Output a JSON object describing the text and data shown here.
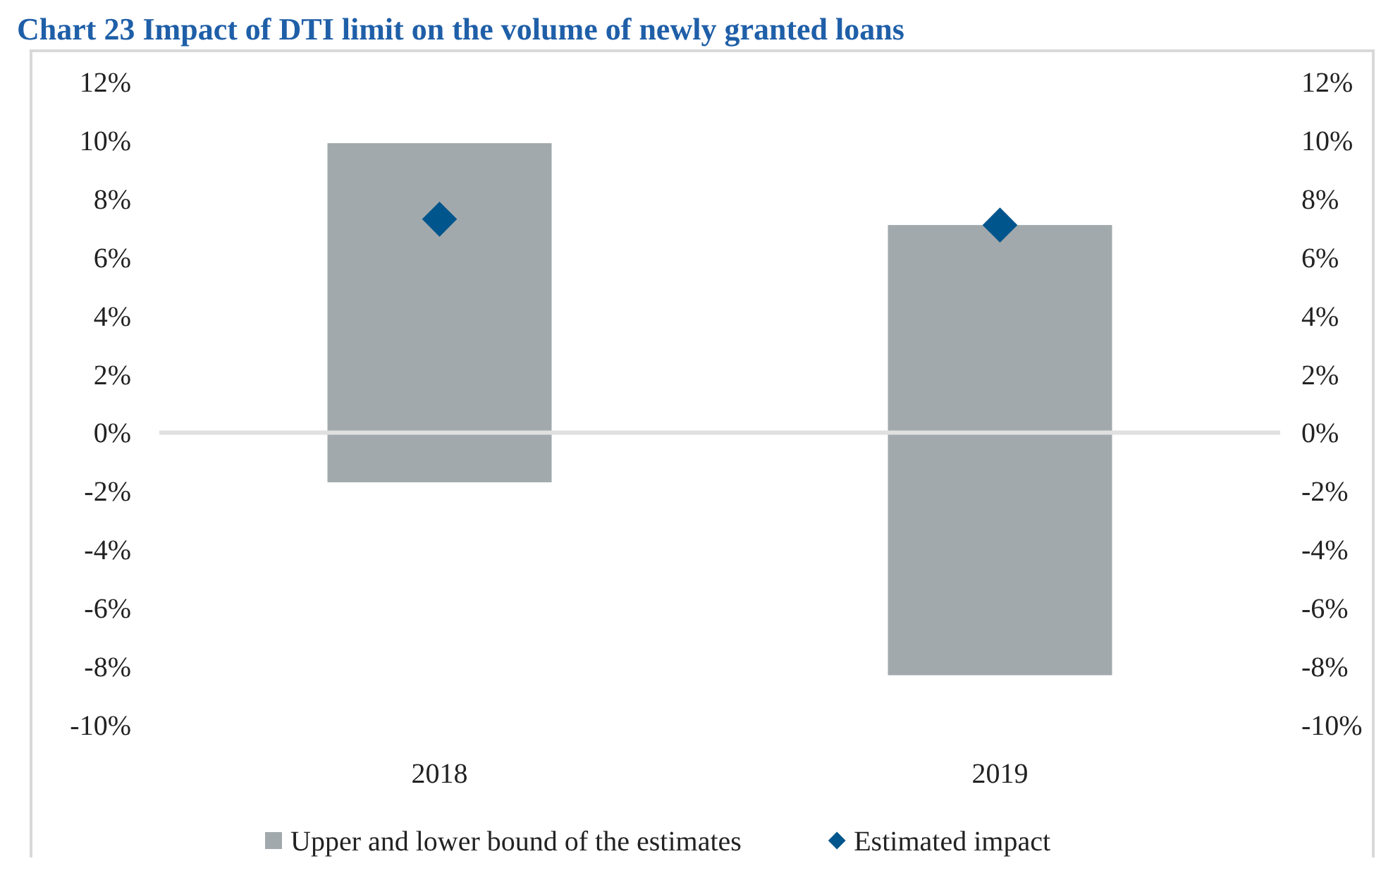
{
  "chart_data": {
    "type": "bar",
    "title": "Chart 23 Impact of DTI limit on the volume of newly granted loans",
    "categories": [
      "2018",
      "2019"
    ],
    "series": [
      {
        "name": "Upper and lower bound of the estimates",
        "color": "#a2a9ac",
        "base": [
          -1.7,
          -8.3
        ],
        "values": [
          11.6,
          15.4
        ]
      },
      {
        "name": "Estimated impact",
        "type": "scatter",
        "color": "#00558c",
        "marker": "diamond",
        "values": [
          7.3,
          7.1
        ]
      }
    ],
    "ylim": [
      -10,
      12
    ],
    "yticks": [
      {
        "value": -10,
        "label": "-10%"
      },
      {
        "value": -8,
        "label": "-8%"
      },
      {
        "value": -6,
        "label": "-6%"
      },
      {
        "value": -4,
        "label": "-4%"
      },
      {
        "value": -2,
        "label": "-2%"
      },
      {
        "value": 0,
        "label": "0%"
      },
      {
        "value": 2,
        "label": "2%"
      },
      {
        "value": 4,
        "label": "4%"
      },
      {
        "value": 6,
        "label": "6%"
      },
      {
        "value": 8,
        "label": "8%"
      },
      {
        "value": 10,
        "label": "10%"
      },
      {
        "value": 12,
        "label": "12%"
      }
    ],
    "y2lim": [
      -10,
      12
    ],
    "y2ticks": [
      {
        "value": -10,
        "label": "-10%"
      },
      {
        "value": -8,
        "label": "-8%"
      },
      {
        "value": -6,
        "label": "-6%"
      },
      {
        "value": -4,
        "label": "-4%"
      },
      {
        "value": -2,
        "label": "-2%"
      },
      {
        "value": 0,
        "label": "0%"
      },
      {
        "value": 2,
        "label": "2%"
      },
      {
        "value": 4,
        "label": "4%"
      },
      {
        "value": 6,
        "label": "6%"
      },
      {
        "value": 8,
        "label": "8%"
      },
      {
        "value": 10,
        "label": "10%"
      },
      {
        "value": 12,
        "label": "12%"
      }
    ],
    "grid": false,
    "ref_lines": [
      {
        "axis": "y",
        "value": 0,
        "color": "#e0e0e0"
      }
    ],
    "legend": "bottom"
  }
}
